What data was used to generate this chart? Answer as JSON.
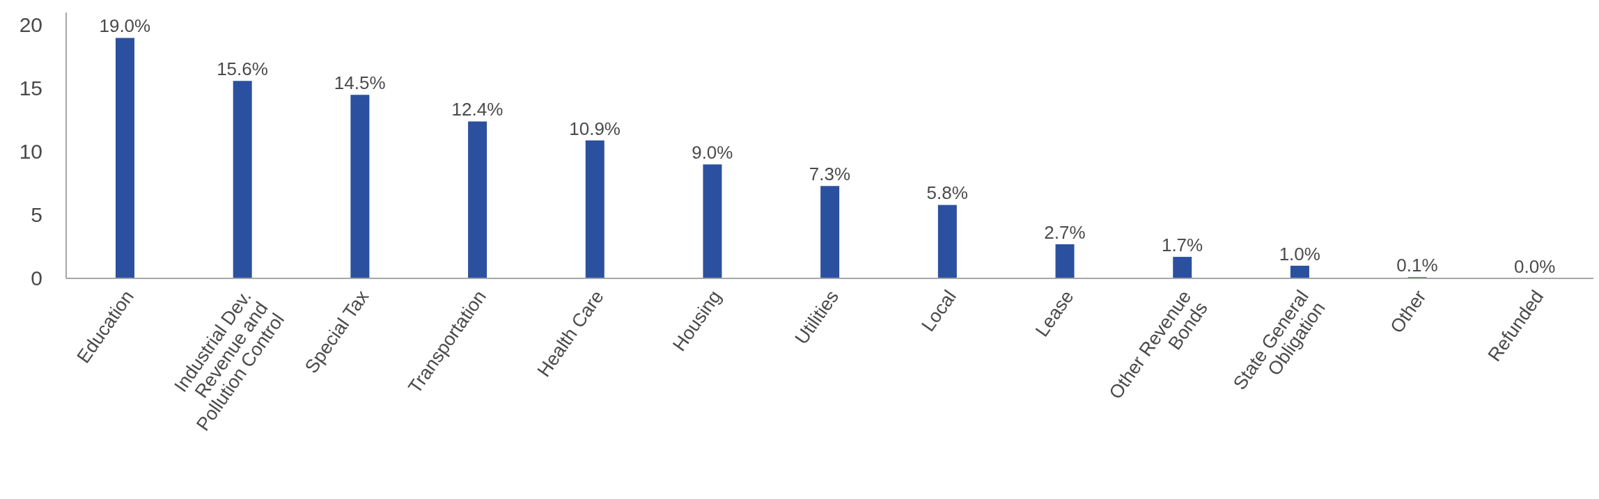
{
  "chart_data": {
    "type": "bar",
    "categories": [
      "Education",
      "Industrial Dev. Revenue and Pollution Control",
      "Special Tax",
      "Transportation",
      "Health Care",
      "Housing",
      "Utilities",
      "Local",
      "Lease",
      "Other Revenue Bonds",
      "State General Obligation",
      "Other",
      "Refunded"
    ],
    "values": [
      19.0,
      15.6,
      14.5,
      12.4,
      10.9,
      9.0,
      7.3,
      5.8,
      2.7,
      1.7,
      1.0,
      0.1,
      0.0
    ],
    "value_labels": [
      "19.0%",
      "15.6%",
      "14.5%",
      "12.4%",
      "10.9%",
      "9.0%",
      "7.3%",
      "5.8%",
      "2.7%",
      "1.7%",
      "1.0%",
      "0.1%",
      "0.0%"
    ],
    "color": "#2b50a0",
    "ylim": [
      0,
      21
    ],
    "yticks": [
      0,
      5,
      10,
      15,
      20
    ]
  }
}
